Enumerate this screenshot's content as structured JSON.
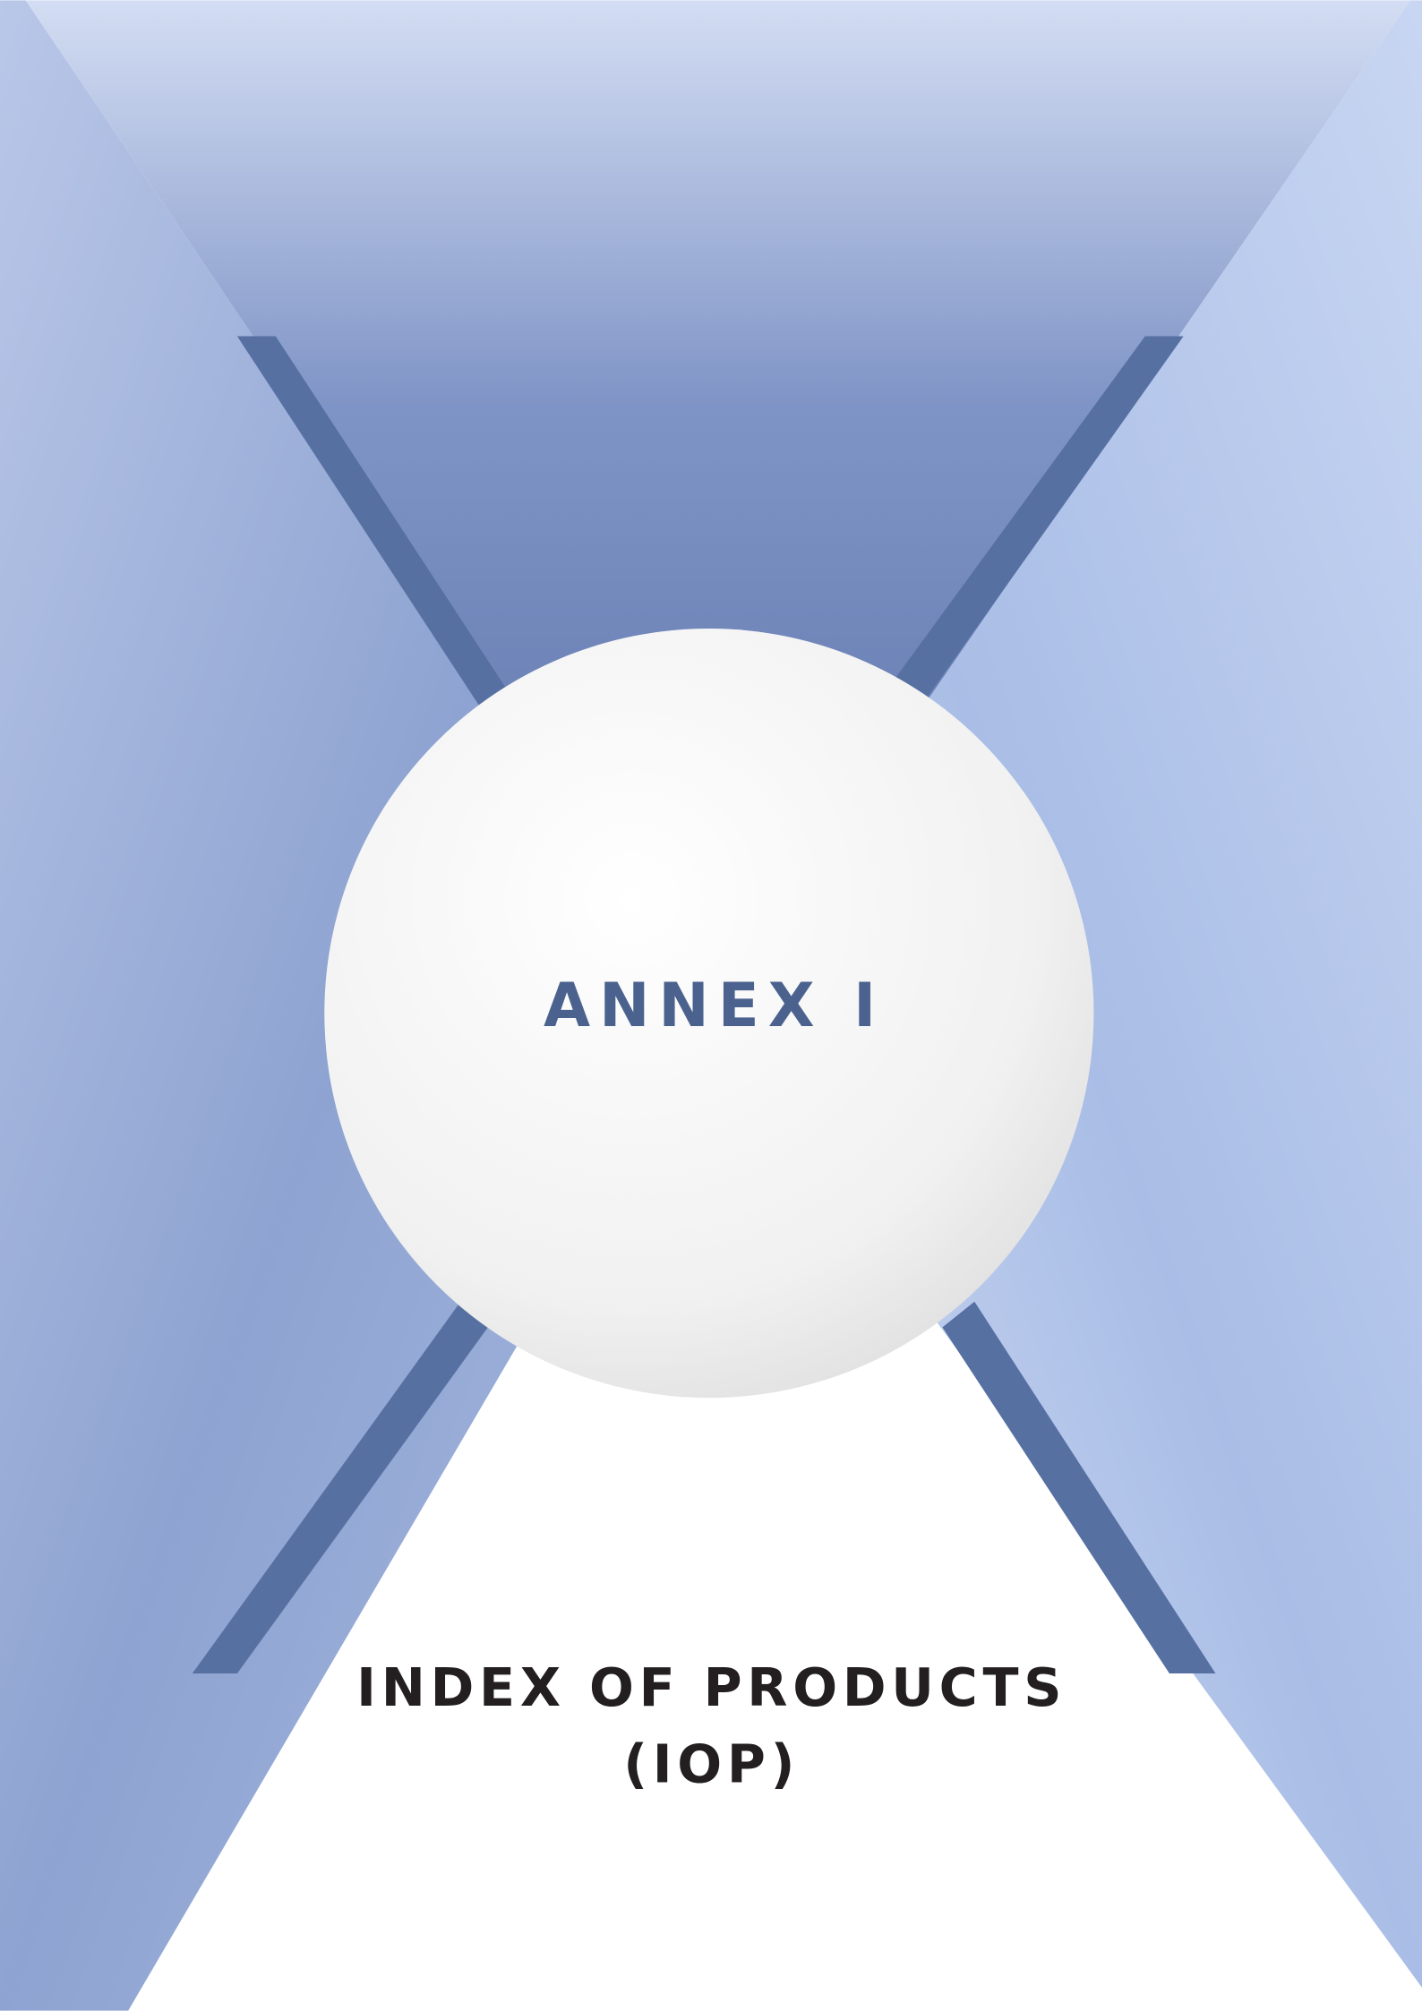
{
  "annex": "ANNEX I",
  "title": {
    "line1": "INDEX OF PRODUCTS",
    "line2": "(IOP)"
  }
}
